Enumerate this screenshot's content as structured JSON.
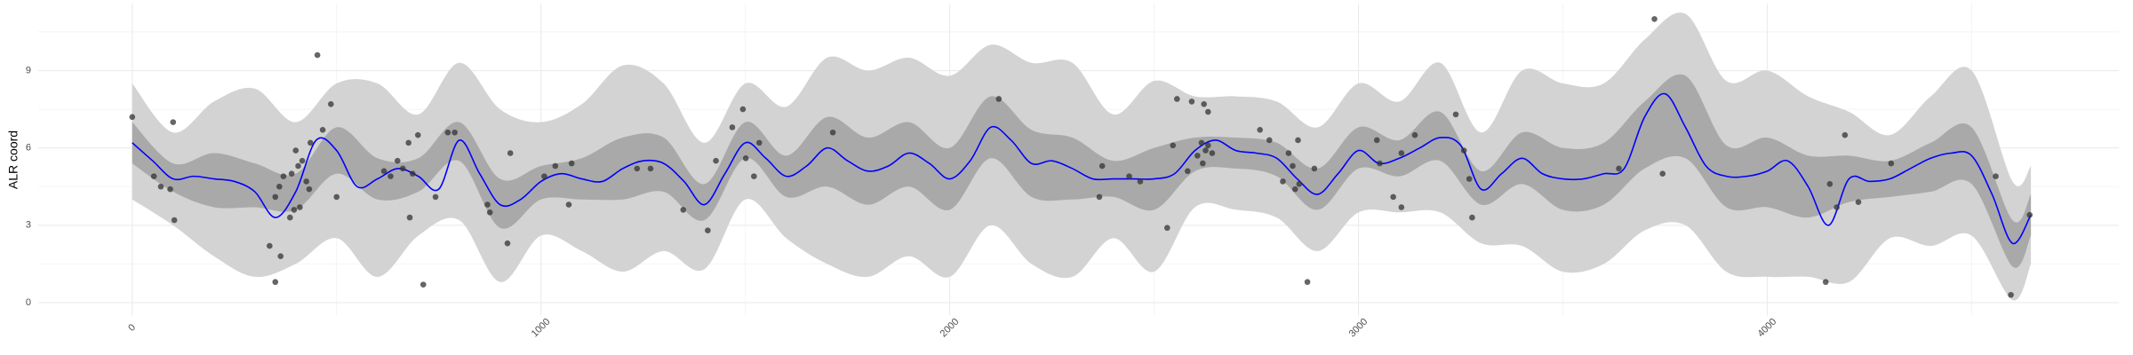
{
  "chart_data": {
    "type": "line",
    "y_label": "ALR coord",
    "xlim": [
      -230,
      4860
    ],
    "ylim": [
      -0.5,
      11.6
    ],
    "xticks": [
      0,
      1000,
      2000,
      3000,
      4000
    ],
    "yticks": [
      0,
      3,
      6,
      9
    ],
    "grid": true,
    "minor_grid": true,
    "band_x": [
      0,
      100,
      200,
      300,
      400,
      500,
      600,
      700,
      800,
      900,
      1000,
      1100,
      1200,
      1300,
      1400,
      1500,
      1600,
      1700,
      1800,
      1900,
      2000,
      2100,
      2200,
      2300,
      2400,
      2500,
      2600,
      2700,
      2800,
      2900,
      3000,
      3100,
      3200,
      3300,
      3400,
      3500,
      3600,
      3700,
      3800,
      3900,
      4000,
      4100,
      4200,
      4300,
      4400,
      4500,
      4600,
      4645
    ],
    "bands": [
      {
        "color": "#d3d3d3",
        "lower": [
          4.0,
          3.0,
          1.8,
          1.0,
          1.5,
          2.5,
          1.0,
          2.6,
          3.2,
          0.8,
          2.6,
          2.0,
          1.2,
          2.0,
          1.3,
          4.0,
          2.5,
          1.5,
          1.0,
          1.8,
          1.0,
          3.0,
          1.5,
          1.0,
          2.5,
          1.2,
          3.7,
          3.6,
          3.3,
          2.0,
          3.5,
          3.5,
          3.5,
          2.3,
          2.2,
          1.2,
          1.5,
          2.8,
          3.0,
          1.2,
          1.0,
          1.0,
          0.8,
          2.5,
          2.2,
          2.6,
          0.1,
          1.5
        ],
        "upper": [
          8.5,
          6.6,
          7.8,
          8.3,
          7.0,
          8.5,
          8.5,
          7.3,
          9.3,
          7.5,
          7.0,
          7.7,
          9.2,
          8.5,
          6.2,
          8.5,
          7.6,
          9.5,
          9.0,
          9.5,
          8.8,
          10.0,
          9.3,
          9.3,
          7.3,
          8.6,
          8.0,
          8.0,
          7.8,
          6.8,
          8.5,
          7.8,
          9.3,
          6.6,
          9.0,
          8.5,
          8.5,
          10.2,
          11.2,
          8.6,
          9.0,
          8.0,
          7.4,
          6.5,
          8.0,
          9.0,
          4.7,
          5.3
        ]
      },
      {
        "color": "#a9a9a9",
        "lower": [
          5.4,
          4.3,
          3.7,
          3.7,
          3.6,
          5.0,
          4.0,
          4.3,
          5.5,
          2.9,
          4.0,
          4.0,
          4.0,
          4.3,
          3.2,
          5.6,
          4.1,
          4.5,
          3.8,
          4.5,
          3.6,
          5.6,
          4.1,
          4.0,
          4.1,
          3.6,
          5.1,
          5.2,
          4.9,
          3.6,
          5.2,
          4.9,
          5.5,
          3.8,
          4.6,
          3.6,
          3.8,
          5.2,
          5.6,
          3.7,
          3.7,
          3.3,
          3.9,
          4.1,
          4.3,
          4.6,
          1.4,
          2.6
        ],
        "upper": [
          7.0,
          5.4,
          5.8,
          5.4,
          5.0,
          6.8,
          5.6,
          5.6,
          7.0,
          4.8,
          5.3,
          5.6,
          6.4,
          6.4,
          4.6,
          7.0,
          5.7,
          7.2,
          6.4,
          7.0,
          6.0,
          8.0,
          6.7,
          6.4,
          5.5,
          6.0,
          6.4,
          6.4,
          6.2,
          5.2,
          6.8,
          6.3,
          7.4,
          5.1,
          6.6,
          6.0,
          6.2,
          7.8,
          8.8,
          6.1,
          6.4,
          5.7,
          5.7,
          5.5,
          6.2,
          6.8,
          3.2,
          4.2
        ]
      }
    ],
    "series": [
      {
        "color": "#0000ff",
        "x": [
          0,
          50,
          100,
          150,
          200,
          250,
          300,
          350,
          400,
          450,
          500,
          550,
          600,
          650,
          700,
          750,
          800,
          850,
          900,
          950,
          1000,
          1050,
          1100,
          1150,
          1200,
          1250,
          1300,
          1350,
          1400,
          1450,
          1500,
          1550,
          1600,
          1650,
          1700,
          1750,
          1800,
          1850,
          1900,
          1950,
          2000,
          2050,
          2100,
          2150,
          2200,
          2250,
          2300,
          2350,
          2400,
          2450,
          2500,
          2550,
          2600,
          2650,
          2700,
          2750,
          2800,
          2850,
          2900,
          2950,
          3000,
          3050,
          3100,
          3150,
          3200,
          3250,
          3300,
          3350,
          3400,
          3450,
          3500,
          3550,
          3600,
          3650,
          3700,
          3750,
          3800,
          3850,
          3900,
          3950,
          4000,
          4050,
          4100,
          4150,
          4200,
          4250,
          4300,
          4350,
          4400,
          4450,
          4500,
          4550,
          4600,
          4645
        ],
        "values": [
          6.2,
          5.5,
          4.8,
          4.9,
          4.8,
          4.7,
          4.3,
          3.3,
          4.3,
          6.3,
          5.9,
          4.5,
          4.8,
          5.2,
          4.9,
          4.4,
          6.3,
          5.0,
          3.8,
          4.0,
          4.7,
          5.0,
          4.8,
          4.7,
          5.2,
          5.5,
          5.4,
          4.7,
          3.8,
          5.0,
          6.2,
          5.6,
          4.9,
          5.3,
          6.0,
          5.5,
          5.1,
          5.3,
          5.8,
          5.4,
          4.8,
          5.5,
          6.8,
          6.3,
          5.4,
          5.5,
          5.2,
          4.8,
          4.8,
          4.8,
          4.8,
          5.0,
          5.9,
          6.3,
          5.9,
          5.8,
          5.6,
          4.8,
          4.2,
          5.0,
          5.9,
          5.4,
          5.6,
          6.0,
          6.4,
          6.1,
          4.4,
          5.0,
          5.6,
          5.0,
          4.8,
          4.8,
          5.0,
          5.2,
          7.2,
          8.1,
          6.8,
          5.3,
          4.9,
          4.9,
          5.1,
          5.5,
          4.5,
          3.0,
          4.8,
          4.7,
          4.8,
          5.2,
          5.6,
          5.8,
          5.7,
          4.2,
          2.3,
          3.4
        ]
      }
    ],
    "points": {
      "color": "#333333",
      "x": [
        0,
        53,
        70,
        93,
        100,
        103,
        336,
        350,
        350,
        360,
        363,
        370,
        386,
        390,
        396,
        400,
        406,
        410,
        416,
        426,
        433,
        436,
        453,
        466,
        486,
        500,
        616,
        632,
        649,
        662,
        676,
        679,
        686,
        699,
        712,
        742,
        772,
        789,
        869,
        875,
        918,
        925,
        1008,
        1035,
        1068,
        1075,
        1235,
        1268,
        1348,
        1408,
        1428,
        1468,
        1494,
        1501,
        1521,
        1534,
        1714,
        2120,
        2373,
        2366,
        2439,
        2466,
        2532,
        2546,
        2556,
        2582,
        2592,
        2606,
        2616,
        2619,
        2622,
        2626,
        2632,
        2632,
        2642,
        2759,
        2782,
        2815,
        2829,
        2839,
        2845,
        2852,
        2875,
        2892,
        2855,
        3045,
        3052,
        3085,
        3105,
        3105,
        3138,
        3238,
        3258,
        3278,
        3271,
        3637,
        3724,
        3744,
        4143,
        4153,
        4170,
        4190,
        4223,
        4303,
        4559,
        4596,
        4642
      ],
      "y": [
        7.2,
        4.9,
        4.5,
        4.4,
        7.0,
        3.2,
        2.2,
        0.8,
        4.1,
        4.5,
        1.8,
        4.9,
        3.3,
        5.0,
        3.6,
        5.9,
        5.3,
        3.7,
        5.5,
        4.7,
        4.4,
        6.2,
        9.6,
        6.7,
        7.7,
        4.1,
        5.1,
        4.9,
        5.5,
        5.2,
        6.2,
        3.3,
        5.0,
        6.5,
        0.7,
        4.1,
        6.6,
        6.6,
        3.8,
        3.5,
        2.3,
        5.8,
        4.9,
        5.3,
        3.8,
        5.4,
        5.2,
        5.2,
        3.6,
        2.8,
        5.5,
        6.8,
        7.5,
        5.6,
        4.9,
        6.2,
        6.6,
        7.9,
        5.3,
        4.1,
        4.9,
        4.7,
        2.9,
        6.1,
        7.9,
        5.1,
        7.8,
        5.7,
        6.2,
        5.4,
        7.7,
        5.9,
        7.4,
        6.1,
        5.8,
        6.7,
        6.3,
        4.7,
        5.8,
        5.3,
        4.4,
        6.3,
        0.8,
        5.2,
        4.6,
        6.3,
        5.4,
        4.1,
        3.7,
        5.8,
        6.5,
        7.3,
        5.9,
        3.3,
        4.8,
        5.2,
        11.0,
        5.0,
        0.8,
        4.6,
        3.7,
        6.5,
        3.9,
        5.4,
        4.9,
        0.3,
        3.4
      ]
    }
  }
}
